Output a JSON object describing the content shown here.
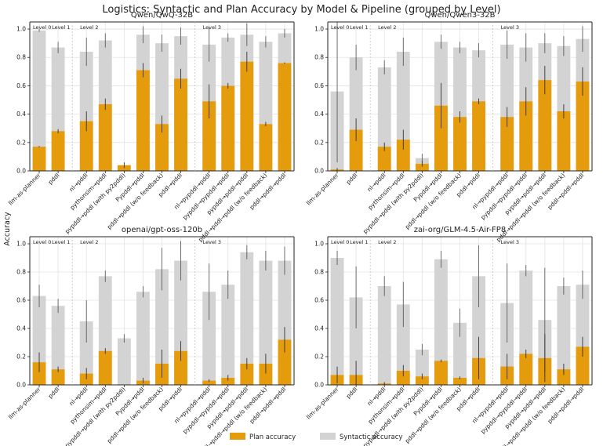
{
  "chart_data": {
    "type": "bar",
    "suptitle": "Logistics: Syntactic and Plan Accuracy by Model & Pipeline (grouped by Level)",
    "ylabel": "Accuracy",
    "ylim": [
      0,
      1.05
    ],
    "yticks": [
      "0.0",
      "0.2",
      "0.4",
      "0.6",
      "0.8",
      "1.0"
    ],
    "grid": true,
    "legend": {
      "position": "bottom-center",
      "entries": [
        "Plan accuracy",
        "Syntactic accuracy"
      ]
    },
    "colors": {
      "plan": "#e59c0c",
      "syntactic": "#d3d3d3",
      "error": "#333333",
      "axis": "#222222",
      "grid": "#e2e2e2"
    },
    "levels": [
      "Level 0",
      "Level 1",
      "Level 2",
      "Level 3"
    ],
    "categories": [
      "llm-as-planner",
      "pddl",
      "nl→pddl",
      "pythonsim→pddl",
      "pypddl→pddl (with py2pddl)",
      "Pypddl→pddl",
      "pddl→pddl (w/o feedback)",
      "pddl→pddl",
      "nl→pypddl→pddl",
      "pypddl→pypddl→pddl",
      "pypddl→pddl→pddl",
      "pddl→pddl→pddl (w/o feedback)",
      "pddl→pddl→pddl"
    ],
    "level_of_category": [
      0,
      1,
      2,
      2,
      2,
      2,
      2,
      2,
      3,
      3,
      3,
      3,
      3
    ],
    "panels": [
      {
        "title": "Qwen/QwQ-32B",
        "syntactic": [
          0.99,
          0.87,
          0.84,
          0.92,
          null,
          0.96,
          0.9,
          0.95,
          0.89,
          0.94,
          0.96,
          0.91,
          0.97
        ],
        "syntactic_err": [
          0.01,
          0.04,
          0.1,
          0.05,
          null,
          0.06,
          0.06,
          0.06,
          0.12,
          0.03,
          0.08,
          0.04,
          0.03
        ],
        "plan": [
          0.17,
          0.28,
          0.35,
          0.47,
          0.04,
          0.71,
          0.33,
          0.65,
          0.49,
          0.6,
          0.77,
          0.33,
          0.76
        ],
        "plan_err": [
          0.005,
          0.015,
          0.07,
          0.04,
          0.02,
          0.05,
          0.06,
          0.07,
          0.12,
          0.02,
          0.07,
          0.015,
          0.005
        ]
      },
      {
        "title": "Qwen/Qwen3-32B",
        "syntactic": [
          0.56,
          0.8,
          0.73,
          0.84,
          0.09,
          0.91,
          0.87,
          0.85,
          0.89,
          0.87,
          0.9,
          0.88,
          0.93
        ],
        "syntactic_err": [
          0.5,
          0.09,
          0.05,
          0.1,
          0.03,
          0.05,
          0.04,
          0.05,
          0.1,
          0.1,
          0.07,
          0.07,
          0.09
        ],
        "plan": [
          0.01,
          0.29,
          0.17,
          0.22,
          0.05,
          0.46,
          0.38,
          0.49,
          0.38,
          0.49,
          0.64,
          0.42,
          0.63
        ],
        "plan_err": [
          0.01,
          0.08,
          0.03,
          0.07,
          0.02,
          0.16,
          0.04,
          0.02,
          0.07,
          0.1,
          0.1,
          0.05,
          0.1
        ]
      },
      {
        "title": "openai/gpt-oss-120b",
        "syntactic": [
          0.63,
          0.56,
          0.45,
          0.77,
          0.33,
          0.66,
          0.82,
          0.88,
          0.66,
          0.71,
          0.94,
          0.88,
          0.88
        ],
        "syntactic_err": [
          0.08,
          0.05,
          0.15,
          0.04,
          0.03,
          0.04,
          0.15,
          0.14,
          0.2,
          0.1,
          0.05,
          0.07,
          0.1
        ],
        "plan": [
          0.16,
          0.11,
          0.08,
          0.24,
          0.0,
          0.03,
          0.15,
          0.24,
          0.03,
          0.05,
          0.15,
          0.15,
          0.32
        ],
        "plan_err": [
          0.07,
          0.02,
          0.04,
          0.02,
          0.0,
          0.02,
          0.1,
          0.07,
          0.01,
          0.02,
          0.04,
          0.07,
          0.09
        ]
      },
      {
        "title": "zai-org/GLM-4.5-Air-FP8",
        "syntactic": [
          0.9,
          0.62,
          0.7,
          0.57,
          0.25,
          0.89,
          0.44,
          0.77,
          0.58,
          0.81,
          0.46,
          0.7,
          0.71
        ],
        "syntactic_err": [
          0.05,
          0.22,
          0.07,
          0.16,
          0.04,
          0.06,
          0.1,
          0.22,
          0.28,
          0.04,
          0.37,
          0.06,
          0.1
        ],
        "plan": [
          0.07,
          0.07,
          0.01,
          0.1,
          0.06,
          0.17,
          0.05,
          0.19,
          0.13,
          0.22,
          0.19,
          0.11,
          0.27
        ],
        "plan_err": [
          0.06,
          0.1,
          0.01,
          0.04,
          0.02,
          0.01,
          0.01,
          0.15,
          0.09,
          0.03,
          0.17,
          0.04,
          0.07
        ]
      }
    ]
  }
}
